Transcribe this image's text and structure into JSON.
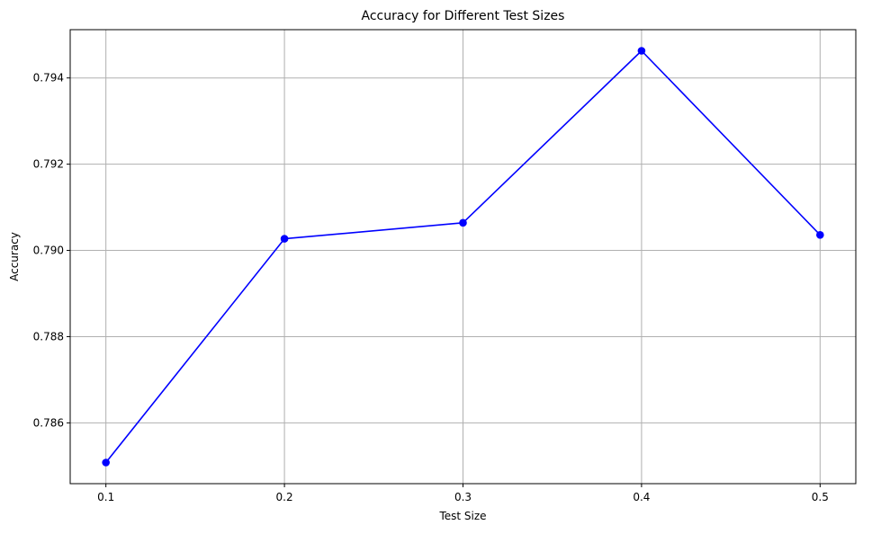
{
  "chart_data": {
    "type": "line",
    "title": "Accuracy for Different Test Sizes",
    "xlabel": "Test Size",
    "ylabel": "Accuracy",
    "x": [
      0.1,
      0.2,
      0.3,
      0.4,
      0.5
    ],
    "series": [
      {
        "values": [
          0.78508,
          0.79027,
          0.79064,
          0.79463,
          0.79036
        ],
        "color": "#0000ff",
        "marker": "circle"
      }
    ],
    "xlim": [
      0.08,
      0.52
    ],
    "ylim": [
      0.78459,
      0.79512
    ],
    "xticks": [
      0.1,
      0.2,
      0.3,
      0.4,
      0.5
    ],
    "xtick_labels": [
      "0.1",
      "0.2",
      "0.3",
      "0.4",
      "0.5"
    ],
    "yticks": [
      0.786,
      0.788,
      0.79,
      0.792,
      0.794
    ],
    "ytick_labels": [
      "0.786",
      "0.788",
      "0.790",
      "0.792",
      "0.794"
    ],
    "grid": true,
    "grid_color": "#b0b0b0",
    "legend": false
  }
}
